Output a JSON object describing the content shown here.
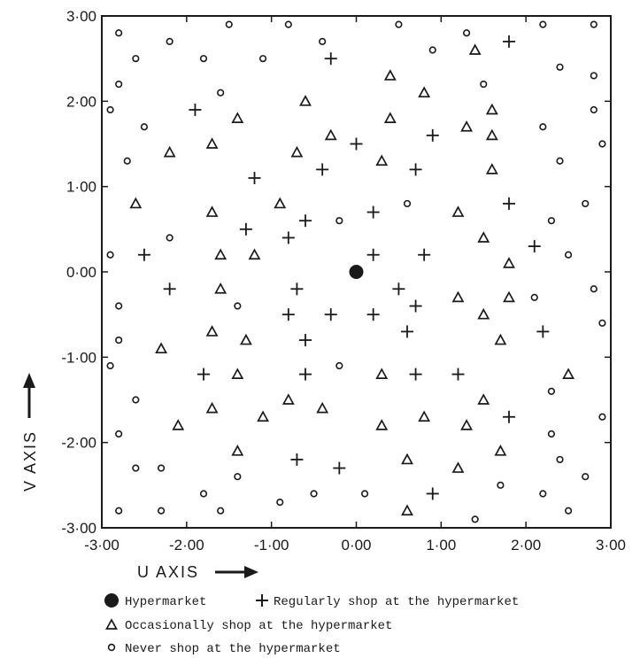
{
  "chart_data": {
    "type": "scatter",
    "title": "",
    "xlabel": "U AXIS",
    "ylabel": "V AXIS",
    "xlim": [
      -3,
      3
    ],
    "ylim": [
      -3,
      3
    ],
    "grid": false,
    "xticks": [
      -3,
      -2,
      -1,
      0,
      1,
      2,
      3
    ],
    "yticks": [
      -3,
      -2,
      -1,
      0,
      1,
      2,
      3
    ],
    "xtick_labels": [
      "-3·00",
      "-2·00",
      "-1·00",
      "0·00",
      "1·00",
      "2·00",
      "3·00"
    ],
    "ytick_labels": [
      "-3·00",
      "-2·00",
      "-1·00",
      "0·00",
      "1·00",
      "2·00",
      "3·00"
    ],
    "legend_position": "bottom-left, below plot",
    "series": [
      {
        "name": "Hypermarket",
        "marker": "filled-circle",
        "points": [
          [
            0.0,
            0.0
          ]
        ]
      },
      {
        "name": "Regularly shop at the hypermarket",
        "marker": "plus",
        "points": [
          [
            -0.3,
            2.5
          ],
          [
            1.8,
            2.7
          ],
          [
            -1.9,
            1.9
          ],
          [
            0.0,
            1.5
          ],
          [
            0.9,
            1.6
          ],
          [
            -0.4,
            1.2
          ],
          [
            0.7,
            1.2
          ],
          [
            -1.2,
            1.1
          ],
          [
            0.2,
            0.7
          ],
          [
            -0.6,
            0.6
          ],
          [
            1.8,
            0.8
          ],
          [
            -1.3,
            0.5
          ],
          [
            -0.8,
            0.4
          ],
          [
            2.1,
            0.3
          ],
          [
            -2.5,
            0.2
          ],
          [
            0.2,
            0.2
          ],
          [
            0.8,
            0.2
          ],
          [
            -2.2,
            -0.2
          ],
          [
            -0.7,
            -0.2
          ],
          [
            0.5,
            -0.2
          ],
          [
            0.7,
            -0.4
          ],
          [
            -0.8,
            -0.5
          ],
          [
            -0.3,
            -0.5
          ],
          [
            0.2,
            -0.5
          ],
          [
            0.6,
            -0.7
          ],
          [
            2.2,
            -0.7
          ],
          [
            -0.6,
            -0.8
          ],
          [
            -1.8,
            -1.2
          ],
          [
            -0.6,
            -1.2
          ],
          [
            0.7,
            -1.2
          ],
          [
            1.2,
            -1.2
          ],
          [
            1.8,
            -1.7
          ],
          [
            -0.7,
            -2.2
          ],
          [
            -0.2,
            -2.3
          ],
          [
            0.9,
            -2.6
          ]
        ]
      },
      {
        "name": "Occasionally shop at the hypermarket",
        "marker": "open-triangle",
        "points": [
          [
            1.4,
            2.6
          ],
          [
            0.4,
            2.3
          ],
          [
            0.8,
            2.1
          ],
          [
            -0.6,
            2.0
          ],
          [
            1.6,
            1.9
          ],
          [
            -1.4,
            1.8
          ],
          [
            0.4,
            1.8
          ],
          [
            1.3,
            1.7
          ],
          [
            -0.3,
            1.6
          ],
          [
            1.6,
            1.6
          ],
          [
            -1.7,
            1.5
          ],
          [
            -2.2,
            1.4
          ],
          [
            -0.7,
            1.4
          ],
          [
            0.3,
            1.3
          ],
          [
            1.6,
            1.2
          ],
          [
            -2.6,
            0.8
          ],
          [
            -0.9,
            0.8
          ],
          [
            -1.7,
            0.7
          ],
          [
            1.2,
            0.7
          ],
          [
            1.5,
            0.4
          ],
          [
            -1.6,
            0.2
          ],
          [
            -1.2,
            0.2
          ],
          [
            1.8,
            0.1
          ],
          [
            -1.6,
            -0.2
          ],
          [
            1.2,
            -0.3
          ],
          [
            1.8,
            -0.3
          ],
          [
            1.5,
            -0.5
          ],
          [
            -1.7,
            -0.7
          ],
          [
            -1.3,
            -0.8
          ],
          [
            1.7,
            -0.8
          ],
          [
            -2.3,
            -0.9
          ],
          [
            -1.4,
            -1.2
          ],
          [
            0.3,
            -1.2
          ],
          [
            2.5,
            -1.2
          ],
          [
            -0.8,
            -1.5
          ],
          [
            1.5,
            -1.5
          ],
          [
            -1.7,
            -1.6
          ],
          [
            -0.4,
            -1.6
          ],
          [
            -1.1,
            -1.7
          ],
          [
            0.8,
            -1.7
          ],
          [
            -2.1,
            -1.8
          ],
          [
            0.3,
            -1.8
          ],
          [
            1.3,
            -1.8
          ],
          [
            -1.4,
            -2.1
          ],
          [
            1.7,
            -2.1
          ],
          [
            0.6,
            -2.2
          ],
          [
            1.2,
            -2.3
          ],
          [
            0.6,
            -2.8
          ]
        ]
      },
      {
        "name": "Never shop at the hypermarket",
        "marker": "open-circle",
        "points": [
          [
            -1.5,
            2.9
          ],
          [
            -0.8,
            2.9
          ],
          [
            0.5,
            2.9
          ],
          [
            2.2,
            2.9
          ],
          [
            2.8,
            2.9
          ],
          [
            -2.8,
            2.8
          ],
          [
            1.3,
            2.8
          ],
          [
            -2.2,
            2.7
          ],
          [
            -0.4,
            2.7
          ],
          [
            0.9,
            2.6
          ],
          [
            -2.6,
            2.5
          ],
          [
            -1.8,
            2.5
          ],
          [
            -1.1,
            2.5
          ],
          [
            2.4,
            2.4
          ],
          [
            2.8,
            2.3
          ],
          [
            -2.8,
            2.2
          ],
          [
            1.5,
            2.2
          ],
          [
            -1.6,
            2.1
          ],
          [
            -2.9,
            1.9
          ],
          [
            2.8,
            1.9
          ],
          [
            -2.5,
            1.7
          ],
          [
            2.2,
            1.7
          ],
          [
            2.9,
            1.5
          ],
          [
            -2.7,
            1.3
          ],
          [
            2.4,
            1.3
          ],
          [
            0.6,
            0.8
          ],
          [
            2.7,
            0.8
          ],
          [
            -0.2,
            0.6
          ],
          [
            2.3,
            0.6
          ],
          [
            -2.2,
            0.4
          ],
          [
            -2.9,
            0.2
          ],
          [
            2.5,
            0.2
          ],
          [
            2.8,
            -0.2
          ],
          [
            2.1,
            -0.3
          ],
          [
            -2.8,
            -0.4
          ],
          [
            -1.4,
            -0.4
          ],
          [
            2.9,
            -0.6
          ],
          [
            -2.8,
            -0.8
          ],
          [
            -2.9,
            -1.1
          ],
          [
            -0.2,
            -1.1
          ],
          [
            2.3,
            -1.4
          ],
          [
            -2.6,
            -1.5
          ],
          [
            2.9,
            -1.7
          ],
          [
            -2.8,
            -1.9
          ],
          [
            2.3,
            -1.9
          ],
          [
            2.4,
            -2.2
          ],
          [
            -2.6,
            -2.3
          ],
          [
            -2.3,
            -2.3
          ],
          [
            -1.4,
            -2.4
          ],
          [
            2.7,
            -2.4
          ],
          [
            1.7,
            -2.5
          ],
          [
            -1.8,
            -2.6
          ],
          [
            -0.5,
            -2.6
          ],
          [
            0.1,
            -2.6
          ],
          [
            2.2,
            -2.6
          ],
          [
            -0.9,
            -2.7
          ],
          [
            -2.8,
            -2.8
          ],
          [
            -2.3,
            -2.8
          ],
          [
            -1.6,
            -2.8
          ],
          [
            2.5,
            -2.8
          ],
          [
            1.4,
            -2.9
          ]
        ]
      }
    ]
  },
  "legend": {
    "items": [
      {
        "marker": "filled-circle",
        "label": "Hypermarket"
      },
      {
        "marker": "plus",
        "label": "Regularly shop at the hypermarket"
      },
      {
        "marker": "open-triangle",
        "label": "Occasionally shop at the hypermarket"
      },
      {
        "marker": "open-circle",
        "label": "Never shop at the hypermarket"
      }
    ]
  },
  "colors": {
    "ink": "#1a1a1a",
    "background": "#ffffff"
  }
}
